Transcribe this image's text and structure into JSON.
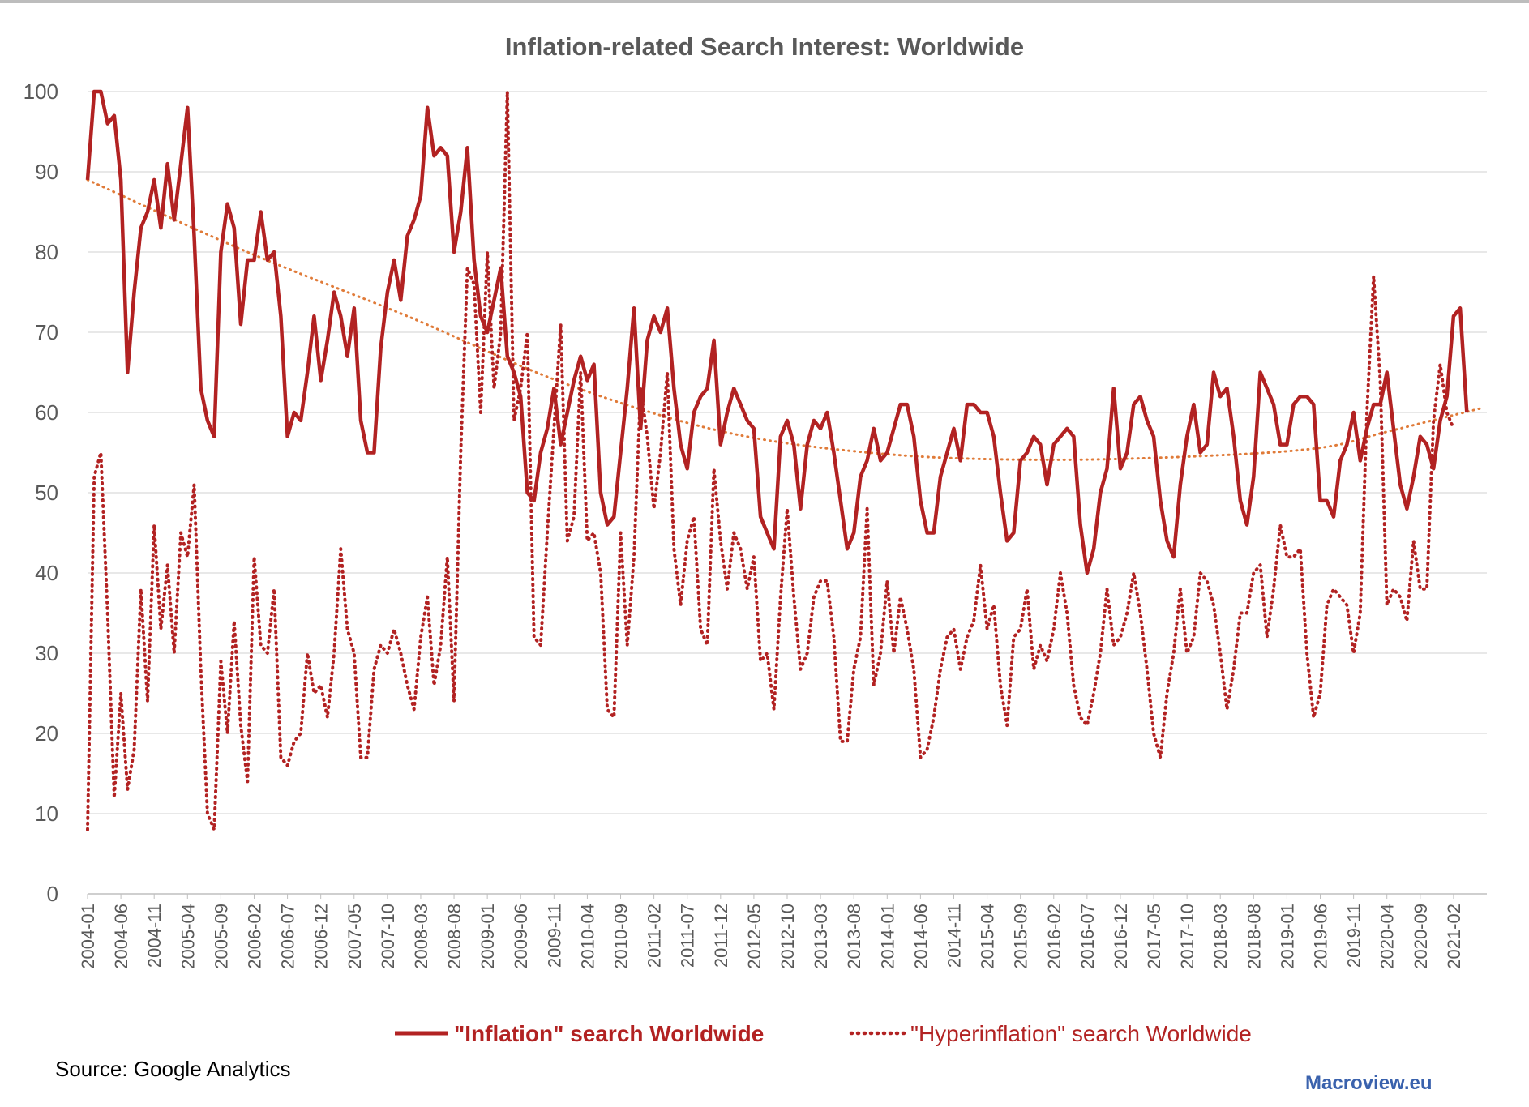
{
  "chart_data": {
    "type": "line",
    "title": "Inflation-related Search Interest: Worldwide",
    "xlabel": "",
    "ylabel": "",
    "ylim": [
      0,
      100
    ],
    "yticks": [
      0,
      10,
      20,
      30,
      40,
      50,
      60,
      70,
      80,
      90,
      100
    ],
    "x_start": "2004-01",
    "x_end": "2021-06",
    "x_ticks": [
      "2004-01",
      "2004-06",
      "2004-11",
      "2005-04",
      "2005-09",
      "2006-02",
      "2006-07",
      "2006-12",
      "2007-05",
      "2007-10",
      "2008-03",
      "2008-08",
      "2009-01",
      "2009-06",
      "2009-11",
      "2010-04",
      "2010-09",
      "2011-02",
      "2011-07",
      "2011-12",
      "2012-05",
      "2012-10",
      "2013-03",
      "2013-08",
      "2014-01",
      "2014-06",
      "2014-11",
      "2015-04",
      "2015-09",
      "2016-02",
      "2016-07",
      "2016-12",
      "2017-05",
      "2017-10",
      "2018-03",
      "2018-08",
      "2019-01",
      "2019-06",
      "2019-11",
      "2020-04",
      "2020-09",
      "2021-02"
    ],
    "grid": true,
    "legend_position": "bottom",
    "series": [
      {
        "name": "\"Inflation\" search Worldwide",
        "style": "solid",
        "color": "#b22222",
        "values": [
          89,
          100,
          100,
          96,
          97,
          89,
          65,
          75,
          83,
          85,
          89,
          83,
          91,
          84,
          91,
          98,
          82,
          63,
          59,
          57,
          80,
          86,
          83,
          71,
          79,
          79,
          85,
          79,
          80,
          72,
          57,
          60,
          59,
          65,
          72,
          64,
          69,
          75,
          72,
          67,
          73,
          59,
          55,
          55,
          68,
          75,
          79,
          74,
          82,
          84,
          87,
          98,
          92,
          93,
          92,
          80,
          85,
          93,
          79,
          72,
          70,
          74,
          78,
          67,
          65,
          62,
          50,
          49,
          55,
          58,
          63,
          56,
          60,
          64,
          67,
          64,
          66,
          50,
          46,
          47,
          55,
          63,
          73,
          58,
          69,
          72,
          70,
          73,
          63,
          56,
          53,
          60,
          62,
          63,
          69,
          56,
          60,
          63,
          61,
          59,
          58,
          47,
          45,
          43,
          57,
          59,
          56,
          48,
          56,
          59,
          58,
          60,
          55,
          49,
          43,
          45,
          52,
          54,
          58,
          54,
          55,
          58,
          61,
          61,
          57,
          49,
          45,
          45,
          52,
          55,
          58,
          54,
          61,
          61,
          60,
          60,
          57,
          50,
          44,
          45,
          54,
          55,
          57,
          56,
          51,
          56,
          57,
          58,
          57,
          46,
          40,
          43,
          50,
          53,
          63,
          53,
          55,
          61,
          62,
          59,
          57,
          49,
          44,
          42,
          51,
          57,
          61,
          55,
          56,
          65,
          62,
          63,
          57,
          49,
          46,
          52,
          65,
          63,
          61,
          56,
          56,
          61,
          62,
          62,
          61,
          49,
          49,
          47,
          54,
          56,
          60,
          54,
          58,
          61,
          61,
          65,
          58,
          51,
          48,
          52,
          57,
          56,
          53,
          59,
          62,
          72,
          73,
          60
        ]
      },
      {
        "name": "\"Hyperinflation\" search Worldwide",
        "style": "dotted",
        "color": "#b22222",
        "values": [
          8,
          52,
          55,
          35,
          12,
          25,
          13,
          18,
          38,
          24,
          46,
          33,
          41,
          30,
          45,
          42,
          51,
          28,
          10,
          8,
          29,
          20,
          34,
          21,
          14,
          42,
          31,
          30,
          38,
          17,
          16,
          19,
          20,
          30,
          25,
          26,
          22,
          30,
          43,
          33,
          30,
          17,
          17,
          28,
          31,
          30,
          33,
          30,
          26,
          23,
          32,
          37,
          26,
          31,
          42,
          24,
          55,
          78,
          76,
          60,
          80,
          63,
          70,
          100,
          59,
          63,
          70,
          32,
          31,
          45,
          58,
          71,
          44,
          47,
          65,
          44,
          45,
          40,
          23,
          22,
          45,
          31,
          42,
          63,
          57,
          48,
          55,
          65,
          43,
          36,
          44,
          47,
          33,
          31,
          53,
          44,
          38,
          45,
          43,
          38,
          42,
          29,
          30,
          23,
          37,
          48,
          37,
          28,
          30,
          37,
          39,
          39,
          32,
          19,
          19,
          28,
          32,
          48,
          26,
          30,
          39,
          30,
          37,
          33,
          28,
          17,
          18,
          22,
          28,
          32,
          33,
          28,
          32,
          34,
          41,
          33,
          36,
          26,
          21,
          32,
          33,
          38,
          28,
          31,
          29,
          33,
          40,
          35,
          26,
          22,
          21,
          25,
          30,
          38,
          31,
          32,
          35,
          40,
          35,
          28,
          20,
          17,
          25,
          30,
          38,
          30,
          32,
          40,
          39,
          36,
          30,
          23,
          28,
          35,
          35,
          40,
          41,
          32,
          38,
          46,
          42,
          42,
          43,
          30,
          22,
          25,
          36,
          38,
          37,
          36,
          30,
          35,
          60,
          77,
          64,
          36,
          38,
          37,
          34,
          44,
          38,
          38,
          59,
          66,
          60,
          58
        ]
      }
    ],
    "trendline": {
      "style": "dotted",
      "color": "#e07b39",
      "points": [
        [
          "2004-01",
          89
        ],
        [
          "2006-01",
          80
        ],
        [
          "2008-01",
          72
        ],
        [
          "2010-01",
          63.5
        ],
        [
          "2012-01",
          57.5
        ],
        [
          "2014-01",
          54.8
        ],
        [
          "2016-01",
          54.1
        ],
        [
          "2018-01",
          54.6
        ],
        [
          "2019-06",
          55.6
        ],
        [
          "2020-04",
          57.6
        ],
        [
          "2021-06",
          60.5
        ]
      ]
    }
  },
  "footer": {
    "source": "Source: Google Analytics",
    "brand": "Macroview.eu"
  }
}
